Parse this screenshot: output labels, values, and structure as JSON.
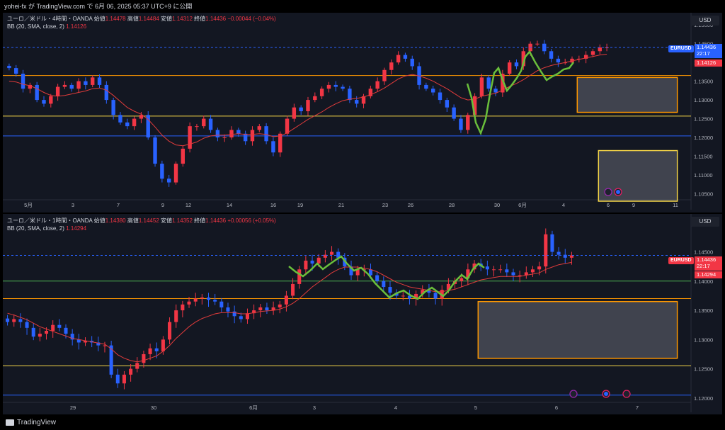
{
  "header": {
    "published_by": "yohei-fx が TradingView.com で 6月 06, 2025 05:37 UTC+9 に公開"
  },
  "footer": {
    "brand": "TradingView"
  },
  "colors": {
    "up": "#f23645",
    "down": "#2962ff",
    "bb": "#e03b3b",
    "orange": "#ff9800",
    "yellow": "#f5d547",
    "blue_line": "#2962ff",
    "green_line": "#4caf50",
    "wave": "#6abf3b"
  },
  "pane1": {
    "title": "ユーロ／米ドル・4時間・OANDA",
    "ohlc": {
      "o_label": "始値",
      "o": "1.14478",
      "h_label": "高値",
      "h": "1.14484",
      "l_label": "安値",
      "l": "1.14312",
      "c_label": "終値",
      "c": "1.14436",
      "chg": "−0.00044 (−0.04%)"
    },
    "indicator": "BB (20, SMA, close, 2)",
    "indicator_value": "1.14126",
    "currency": "USD",
    "symbol_tag": "EURUSD",
    "last_price": "1.14436",
    "countdown": "22:17",
    "bb_price": "1.14126"
  },
  "pane2": {
    "title": "ユーロ／米ドル・1時間・OANDA",
    "ohlc": {
      "o_label": "始値",
      "o": "1.14380",
      "h_label": "高値",
      "h": "1.14452",
      "l_label": "安値",
      "l": "1.14352",
      "c_label": "終値",
      "c": "1.14436",
      "chg": "+0.00056 (+0.05%)"
    },
    "indicator": "BB (20, SMA, close, 2)",
    "indicator_value": "1.14294",
    "currency": "USD",
    "symbol_tag": "EURUSD",
    "last_price": "1.14436",
    "countdown": "22:17",
    "bb_price": "1.14294"
  },
  "chart_data": [
    {
      "type": "candlestick",
      "title": "ユーロ／米ドル・4時間・OANDA",
      "ylim": [
        1.103,
        1.1525
      ],
      "y_ticks": [
        "1.15000",
        "1.14500",
        "1.14000",
        "1.13500",
        "1.13000",
        "1.12500",
        "1.12000",
        "1.11500",
        "1.11000",
        "1.10500"
      ],
      "x_ticks": [
        "5月",
        "3",
        "7",
        "9",
        "12",
        "14",
        "16",
        "19",
        "21",
        "23",
        "26",
        "28",
        "30",
        "6月",
        "4",
        "6",
        "9",
        "11"
      ],
      "horizontal_levels": [
        {
          "price": 1.1365,
          "color": "orange"
        },
        {
          "price": 1.1257,
          "color": "yellow"
        },
        {
          "price": 1.1204,
          "color": "blue"
        }
      ],
      "zones": [
        {
          "x_from": 0.834,
          "x_to": 0.98,
          "price_top": 1.136,
          "price_bottom": 1.1267,
          "border": "orange"
        },
        {
          "x_from": 0.865,
          "x_to": 0.98,
          "price_top": 1.1165,
          "price_bottom": 1.103,
          "border": "yellow"
        }
      ],
      "close_path": [
        1.1385,
        1.137,
        1.133,
        1.134,
        1.13,
        1.129,
        1.131,
        1.1335,
        1.134,
        1.133,
        1.135,
        1.134,
        1.136,
        1.134,
        1.13,
        1.126,
        1.124,
        1.123,
        1.125,
        1.126,
        1.12,
        1.113,
        1.109,
        1.108,
        1.113,
        1.117,
        1.123,
        1.123,
        1.125,
        1.122,
        1.12,
        1.12,
        1.122,
        1.121,
        1.119,
        1.122,
        1.123,
        1.119,
        1.116,
        1.121,
        1.125,
        1.128,
        1.127,
        1.13,
        1.131,
        1.133,
        1.134,
        1.1335,
        1.133,
        1.13,
        1.129,
        1.131,
        1.133,
        1.135,
        1.138,
        1.14,
        1.142,
        1.141,
        1.139,
        1.134,
        1.133,
        1.132,
        1.13,
        1.128,
        1.125,
        1.122,
        1.126,
        1.131,
        1.136,
        1.133,
        1.132,
        1.137,
        1.14,
        1.139,
        1.143,
        1.145,
        1.145,
        1.143,
        1.141,
        1.14,
        1.14,
        1.141,
        1.141,
        1.142,
        1.143,
        1.144,
        1.144
      ],
      "bb_basis": [
        1.135,
        1.1348,
        1.1342,
        1.1338,
        1.133,
        1.132,
        1.1312,
        1.131,
        1.1312,
        1.1316,
        1.132,
        1.1324,
        1.133,
        1.1332,
        1.1326,
        1.1312,
        1.1296,
        1.128,
        1.127,
        1.1262,
        1.1248,
        1.1228,
        1.1206,
        1.119,
        1.118,
        1.1178,
        1.1182,
        1.1188,
        1.1198,
        1.1204,
        1.1206,
        1.1206,
        1.1208,
        1.121,
        1.1208,
        1.1208,
        1.121,
        1.1208,
        1.1202,
        1.1204,
        1.1212,
        1.1224,
        1.1236,
        1.1248,
        1.1258,
        1.1268,
        1.128,
        1.129,
        1.1298,
        1.1302,
        1.1304,
        1.1308,
        1.1314,
        1.1322,
        1.1332,
        1.1344,
        1.1356,
        1.1364,
        1.1368,
        1.1364,
        1.1358,
        1.135,
        1.134,
        1.133,
        1.1318,
        1.1306,
        1.13,
        1.1302,
        1.131,
        1.1314,
        1.1318,
        1.1326,
        1.1336,
        1.1344,
        1.1354,
        1.1366,
        1.1378,
        1.1386,
        1.1392,
        1.1396,
        1.14,
        1.1404,
        1.1408,
        1.1412,
        1.1416,
        1.142,
        1.1422
      ]
    },
    {
      "type": "candlestick",
      "title": "ユーロ／米ドル・1時間・OANDA",
      "ylim": [
        1.1195,
        1.151
      ],
      "y_ticks": [
        "1.15000",
        "1.14500",
        "1.14000",
        "1.13500",
        "1.13000",
        "1.12500",
        "1.12000"
      ],
      "x_ticks": [
        "29",
        "30",
        "6月",
        "3",
        "4",
        "5",
        "6",
        "7"
      ],
      "horizontal_levels": [
        {
          "price": 1.14,
          "color": "green"
        },
        {
          "price": 1.137,
          "color": "orange"
        },
        {
          "price": 1.1255,
          "color": "yellow"
        },
        {
          "price": 1.1205,
          "color": "blue"
        }
      ],
      "zones": [
        {
          "x_from": 0.69,
          "x_to": 0.98,
          "price_top": 1.1365,
          "price_bottom": 1.1268,
          "border": "orange"
        }
      ],
      "close_path": [
        1.133,
        1.1335,
        1.133,
        1.132,
        1.1305,
        1.131,
        1.1315,
        1.1325,
        1.132,
        1.131,
        1.13,
        1.1295,
        1.1298,
        1.1295,
        1.129,
        1.129,
        1.124,
        1.1225,
        1.124,
        1.125,
        1.126,
        1.1275,
        1.1285,
        1.128,
        1.13,
        1.133,
        1.135,
        1.136,
        1.1365,
        1.137,
        1.1372,
        1.1368,
        1.1365,
        1.1355,
        1.1348,
        1.134,
        1.1335,
        1.1345,
        1.135,
        1.1355,
        1.135,
        1.1355,
        1.136,
        1.1375,
        1.1395,
        1.142,
        1.1435,
        1.143,
        1.144,
        1.1445,
        1.145,
        1.144,
        1.1425,
        1.141,
        1.142,
        1.142,
        1.141,
        1.14,
        1.139,
        1.138,
        1.1375,
        1.1375,
        1.137,
        1.1378,
        1.1385,
        1.138,
        1.137,
        1.1385,
        1.1395,
        1.14,
        1.1405,
        1.142,
        1.143,
        1.1425,
        1.142,
        1.142,
        1.142,
        1.1415,
        1.141,
        1.141,
        1.1415,
        1.142,
        1.1425,
        1.148,
        1.145,
        1.1445,
        1.144,
        1.1444
      ],
      "bb_basis": [
        1.1345,
        1.1342,
        1.1338,
        1.1334,
        1.1328,
        1.1322,
        1.1318,
        1.1314,
        1.131,
        1.1306,
        1.1302,
        1.13,
        1.1298,
        1.1296,
        1.1294,
        1.1292,
        1.1284,
        1.1274,
        1.1268,
        1.1264,
        1.1262,
        1.1264,
        1.1268,
        1.1272,
        1.128,
        1.129,
        1.1302,
        1.1312,
        1.1322,
        1.133,
        1.1336,
        1.134,
        1.1344,
        1.1346,
        1.1346,
        1.1346,
        1.1344,
        1.1344,
        1.1346,
        1.1348,
        1.1349,
        1.135,
        1.1352,
        1.1356,
        1.1362,
        1.137,
        1.138,
        1.139,
        1.1398,
        1.1406,
        1.1414,
        1.142,
        1.1424,
        1.1424,
        1.1424,
        1.1422,
        1.142,
        1.1416,
        1.141,
        1.1404,
        1.1398,
        1.1394,
        1.139,
        1.1388,
        1.1386,
        1.1384,
        1.1382,
        1.1382,
        1.1384,
        1.1386,
        1.139,
        1.1394,
        1.1398,
        1.1402,
        1.1404,
        1.1406,
        1.1408,
        1.1408,
        1.1408,
        1.1408,
        1.141,
        1.1412,
        1.1414,
        1.142,
        1.1424,
        1.1428,
        1.143,
        1.1432
      ]
    }
  ]
}
